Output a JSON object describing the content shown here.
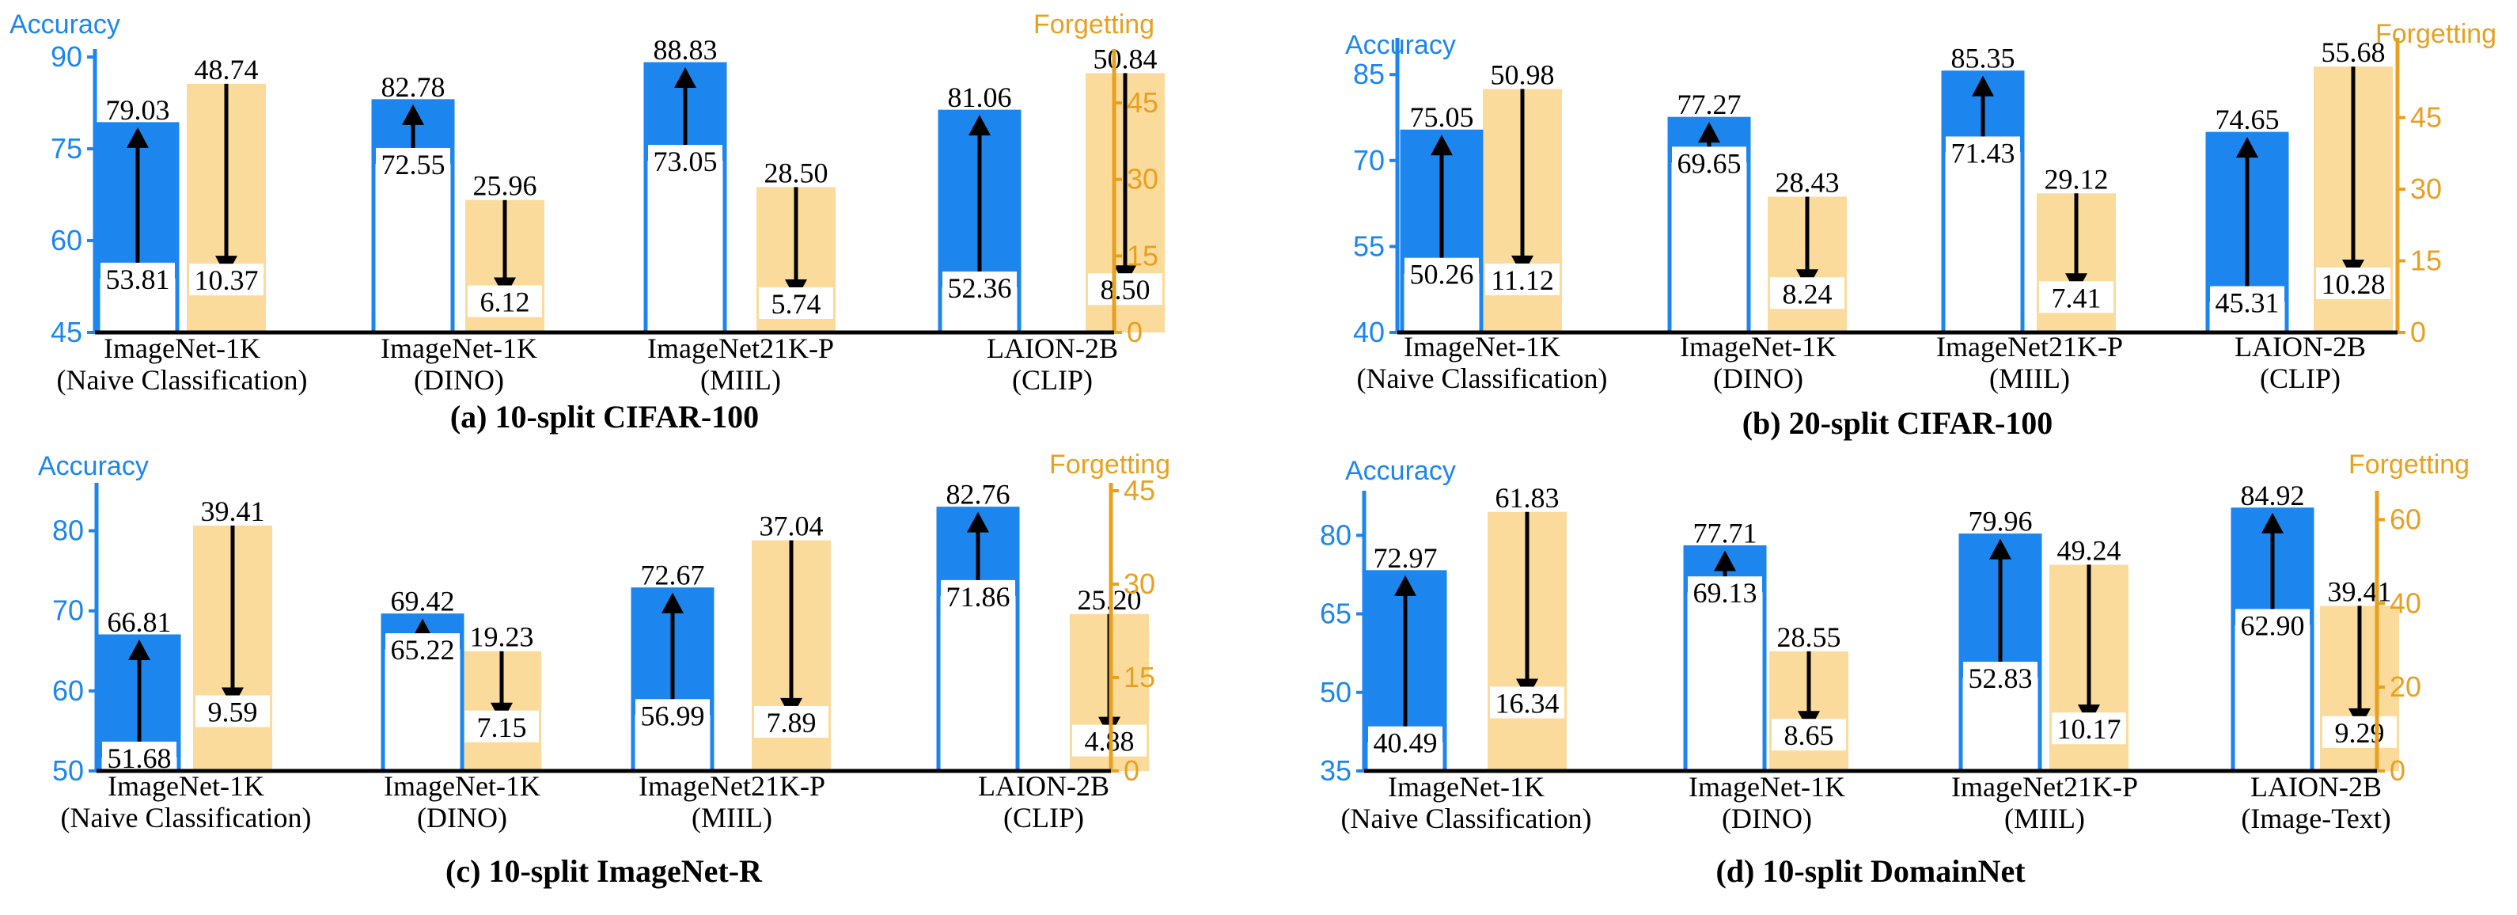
{
  "colors": {
    "accuracy": "#1c86ee",
    "forgetting": "#fbdb9c",
    "forgetting_axis": "#e8a020",
    "arrow": "#000000",
    "value_box": "#ffffff"
  },
  "chart_data": [
    {
      "type": "bar",
      "caption": "(a) 10-split CIFAR-100",
      "left_axis": {
        "label": "Accuracy",
        "ylim": [
          45,
          90
        ],
        "ticks": [
          45,
          60,
          75,
          90
        ]
      },
      "right_axis": {
        "label": "Forgetting",
        "ylim": [
          0,
          54
        ],
        "ticks": [
          0,
          15,
          30,
          45
        ]
      },
      "groups": [
        {
          "name": "ImageNet-1K",
          "sub": "(Naive Classification)",
          "acc_low": 53.81,
          "acc_high": 79.03,
          "fgt_high": 48.74,
          "fgt_low": 10.37,
          "acc_low_label": "53.81",
          "acc_high_label": "79.03",
          "fgt_high_label": "48.74",
          "fgt_low_label": "10.37"
        },
        {
          "name": "ImageNet-1K",
          "sub": "(DINO)",
          "acc_low": 72.55,
          "acc_high": 82.78,
          "fgt_high": 25.96,
          "fgt_low": 6.12,
          "acc_low_label": "72.55",
          "acc_high_label": "82.78",
          "fgt_high_label": "25.96",
          "fgt_low_label": "6.12"
        },
        {
          "name": "ImageNet21K-P",
          "sub": "(MIIL)",
          "acc_low": 73.05,
          "acc_high": 88.83,
          "fgt_high": 28.5,
          "fgt_low": 5.74,
          "acc_low_label": "73.05",
          "acc_high_label": "88.83",
          "fgt_high_label": "28.50",
          "fgt_low_label": "5.74"
        },
        {
          "name": "LAION-2B",
          "sub": "(CLIP)",
          "acc_low": 52.36,
          "acc_high": 81.06,
          "fgt_high": 50.84,
          "fgt_low": 8.5,
          "acc_low_label": "52.36",
          "acc_high_label": "81.06",
          "fgt_high_label": "50.84",
          "fgt_low_label": "8.50"
        }
      ]
    },
    {
      "type": "bar",
      "caption": "(b) 20-split CIFAR-100",
      "left_axis": {
        "label": "Accuracy",
        "ylim": [
          40,
          90
        ],
        "ticks": [
          40,
          55,
          70,
          85
        ]
      },
      "right_axis": {
        "label": "Forgetting",
        "ylim": [
          0,
          60
        ],
        "ticks": [
          0,
          15,
          30,
          45
        ]
      },
      "groups": [
        {
          "name": "ImageNet-1K",
          "sub": "(Naive Classification)",
          "acc_low": 50.26,
          "acc_high": 75.05,
          "fgt_high": 50.98,
          "fgt_low": 11.12,
          "acc_low_label": "50.26",
          "acc_high_label": "75.05",
          "fgt_high_label": "50.98",
          "fgt_low_label": "11.12"
        },
        {
          "name": "ImageNet-1K",
          "sub": "(DINO)",
          "acc_low": 69.65,
          "acc_high": 77.27,
          "fgt_high": 28.43,
          "fgt_low": 8.24,
          "acc_low_label": "69.65",
          "acc_high_label": "77.27",
          "fgt_high_label": "28.43",
          "fgt_low_label": "8.24"
        },
        {
          "name": "ImageNet21K-P",
          "sub": "(MIIL)",
          "acc_low": 71.43,
          "acc_high": 85.35,
          "fgt_high": 29.12,
          "fgt_low": 7.41,
          "acc_low_label": "71.43",
          "acc_high_label": "85.35",
          "fgt_high_label": "29.12",
          "fgt_low_label": "7.41"
        },
        {
          "name": "LAION-2B",
          "sub": "(CLIP)",
          "acc_low": 45.31,
          "acc_high": 74.65,
          "fgt_high": 55.68,
          "fgt_low": 10.28,
          "acc_low_label": "45.31",
          "acc_high_label": "74.65",
          "fgt_high_label": "55.68",
          "fgt_low_label": "10.28"
        }
      ]
    },
    {
      "type": "bar",
      "caption": "(c) 10-split ImageNet-R",
      "left_axis": {
        "label": "Accuracy",
        "ylim": [
          50,
          85
        ],
        "ticks": [
          50,
          60,
          70,
          80
        ]
      },
      "right_axis": {
        "label": "Forgetting",
        "ylim": [
          0,
          45
        ],
        "ticks": [
          0,
          15,
          30,
          45
        ]
      },
      "groups": [
        {
          "name": "ImageNet-1K",
          "sub": "(Naive Classification)",
          "acc_low": 51.68,
          "acc_high": 66.81,
          "fgt_high": 39.41,
          "fgt_low": 9.59,
          "acc_low_label": "51.68",
          "acc_high_label": "66.81",
          "fgt_high_label": "39.41",
          "fgt_low_label": "9.59"
        },
        {
          "name": "ImageNet-1K",
          "sub": "(DINO)",
          "acc_low": 65.22,
          "acc_high": 69.42,
          "fgt_high": 19.23,
          "fgt_low": 7.15,
          "acc_low_label": "65.22",
          "acc_high_label": "69.42",
          "fgt_high_label": "19.23",
          "fgt_low_label": "7.15"
        },
        {
          "name": "ImageNet21K-P",
          "sub": "(MIIL)",
          "acc_low": 56.99,
          "acc_high": 72.67,
          "fgt_high": 37.04,
          "fgt_low": 7.89,
          "acc_low_label": "56.99",
          "acc_high_label": "72.67",
          "fgt_high_label": "37.04",
          "fgt_low_label": "7.89"
        },
        {
          "name": "LAION-2B",
          "sub": "(CLIP)",
          "acc_low": 71.86,
          "acc_high": 82.76,
          "fgt_high": 25.2,
          "fgt_low": 4.88,
          "acc_low_label": "71.86",
          "acc_high_label": "82.76",
          "fgt_high_label": "25.20",
          "fgt_low_label": "4.88"
        }
      ]
    },
    {
      "type": "bar",
      "caption": "(d) 10-split DomainNet",
      "left_axis": {
        "label": "Accuracy",
        "ylim": [
          35,
          87
        ],
        "ticks": [
          35,
          50,
          65,
          80
        ]
      },
      "right_axis": {
        "label": "Forgetting",
        "ylim": [
          0,
          65
        ],
        "ticks": [
          0,
          20,
          40,
          60
        ]
      },
      "groups": [
        {
          "name": "ImageNet-1K",
          "sub": "(Naive Classification)",
          "acc_low": 40.49,
          "acc_high": 72.97,
          "fgt_high": 61.83,
          "fgt_low": 16.34,
          "acc_low_label": "40.49",
          "acc_high_label": "72.97",
          "fgt_high_label": "61.83",
          "fgt_low_label": "16.34"
        },
        {
          "name": "ImageNet-1K",
          "sub": "(DINO)",
          "acc_low": 69.13,
          "acc_high": 77.71,
          "fgt_high": 28.55,
          "fgt_low": 8.65,
          "acc_low_label": "69.13",
          "acc_high_label": "77.71",
          "fgt_high_label": "28.55",
          "fgt_low_label": "8.65"
        },
        {
          "name": "ImageNet21K-P",
          "sub": "(MIIL)",
          "acc_low": 52.83,
          "acc_high": 79.96,
          "fgt_high": 49.24,
          "fgt_low": 10.17,
          "acc_low_label": "52.83",
          "acc_high_label": "79.96",
          "fgt_high_label": "49.24",
          "fgt_low_label": "10.17"
        },
        {
          "name": "LAION-2B",
          "sub": "(Image-Text)",
          "acc_low": 62.9,
          "acc_high": 84.92,
          "fgt_high": 39.41,
          "fgt_low": 9.29,
          "acc_low_label": "62.90",
          "acc_high_label": "84.92",
          "fgt_high_label": "39.41",
          "fgt_low_label": "9.29"
        }
      ]
    }
  ]
}
